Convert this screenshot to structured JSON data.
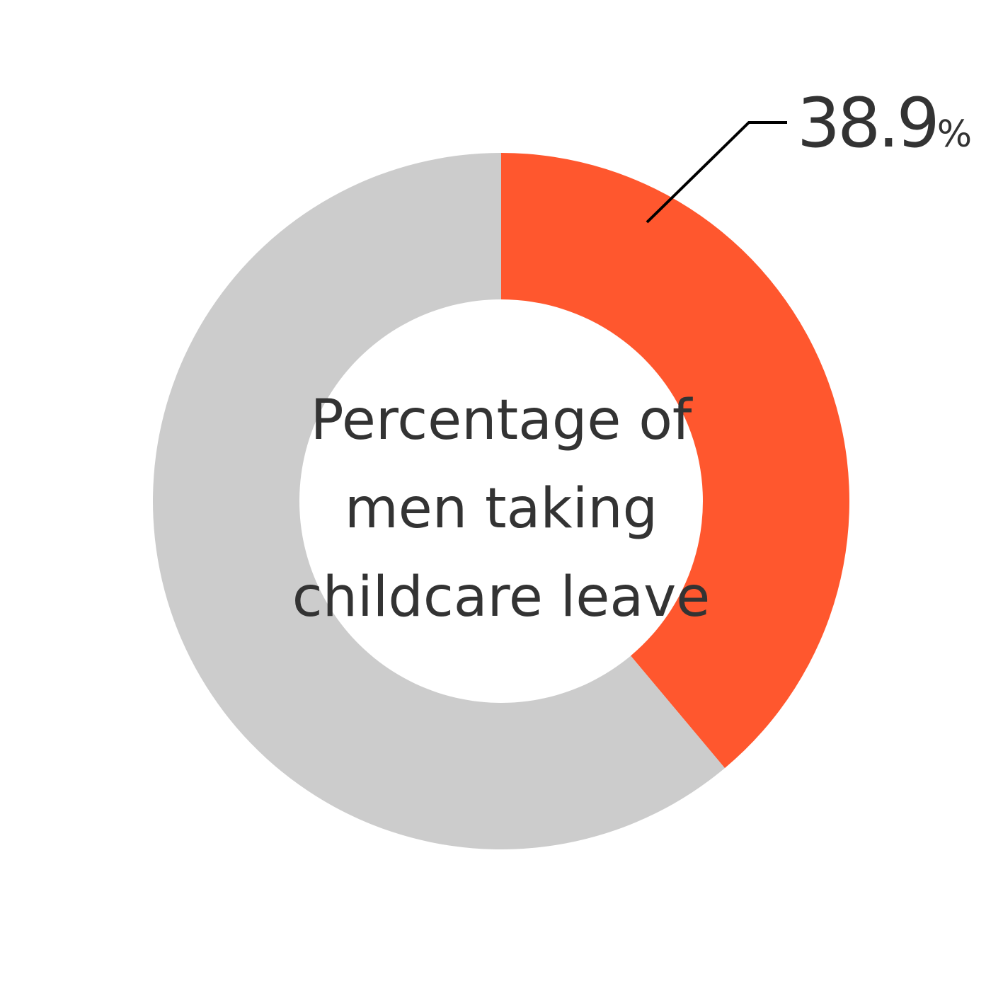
{
  "chart_data": {
    "type": "pie",
    "style": "donut",
    "slices": [
      {
        "value": 38.9,
        "color": "#ff572e"
      },
      {
        "value": 61.1,
        "color": "#cccccc"
      }
    ],
    "value_label": "38.9",
    "value_unit": "%",
    "center_label_lines": [
      "Percentage of",
      "men taking",
      "childcare leave"
    ],
    "leader_line_color": "#000000"
  }
}
